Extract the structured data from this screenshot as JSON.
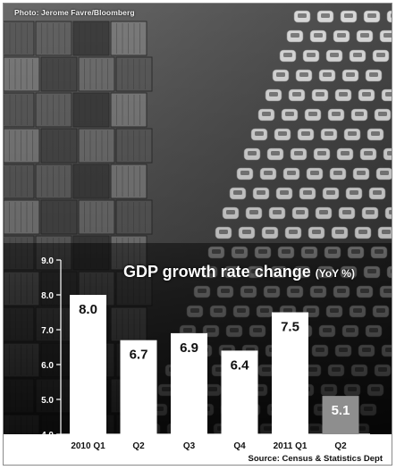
{
  "credit": "Photo: Jerome Favre/Bloomberg",
  "chart_data": {
    "type": "bar",
    "title": "GDP growth rate change",
    "title_unit": "(YoY %)",
    "categories": [
      "2010 Q1",
      "Q2",
      "Q3",
      "Q4",
      "2011 Q1",
      "Q2"
    ],
    "values": [
      8.0,
      6.7,
      6.9,
      6.4,
      7.5,
      5.1
    ],
    "value_labels": [
      "8.0",
      "6.7",
      "6.9",
      "6.4",
      "7.5",
      "5.1"
    ],
    "ylim": [
      4.0,
      9.0
    ],
    "yticks": [
      "4.0",
      "5.0",
      "6.0",
      "7.0",
      "8.0",
      "9.0"
    ],
    "xlabel": "",
    "ylabel": "",
    "bar_color": "#ffffff",
    "highlight_color": "#8e8e8e",
    "highlight_index": 5
  },
  "source": "Source: Census & Statistics Dept"
}
